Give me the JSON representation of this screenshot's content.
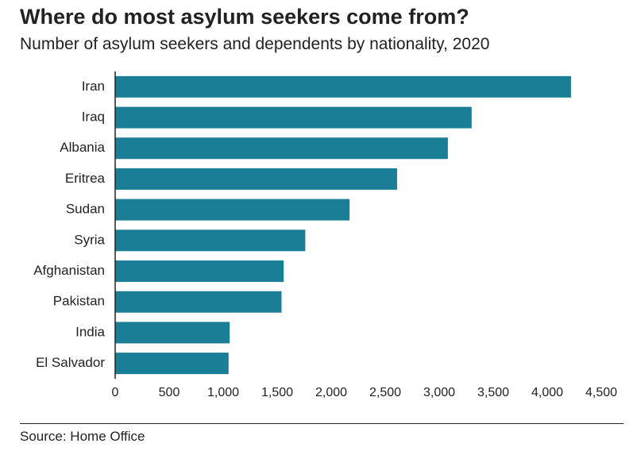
{
  "header": {
    "title": "Where do most asylum seekers come from?",
    "subtitle": "Number of asylum seekers and dependents by nationality, 2020"
  },
  "footer": {
    "source": "Source: Home Office"
  },
  "chart_data": {
    "type": "bar",
    "orientation": "horizontal",
    "title": "Where do most asylum seekers come from?",
    "subtitle": "Number of asylum seekers and dependents by nationality, 2020",
    "categories": [
      "Iran",
      "Iraq",
      "Albania",
      "Eritrea",
      "Sudan",
      "Syria",
      "Afghanistan",
      "Pakistan",
      "India",
      "El Salvador"
    ],
    "values": [
      4220,
      3300,
      3080,
      2610,
      2170,
      1760,
      1560,
      1540,
      1060,
      1050
    ],
    "xlim": [
      0,
      4500
    ],
    "xticks": [
      0,
      500,
      1000,
      1500,
      2000,
      2500,
      3000,
      3500,
      4000,
      4500
    ],
    "xtick_labels": [
      "0",
      "500",
      "1,000",
      "1,500",
      "2,000",
      "2,500",
      "3,000",
      "3,500",
      "4,000",
      "4,500"
    ],
    "bar_color": "#1a7f96",
    "grid": false,
    "legend": "none"
  }
}
